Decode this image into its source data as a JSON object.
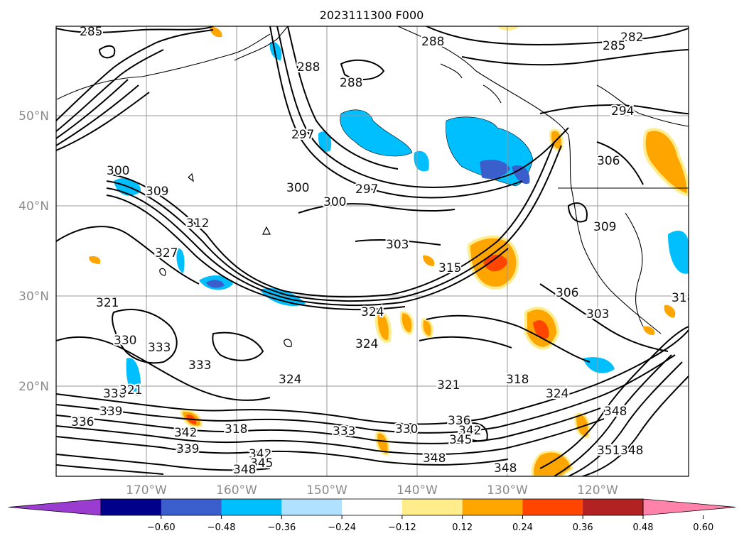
{
  "title": "2023111300 F000",
  "lat_labels": [
    "50°N",
    "40°N",
    "30°N",
    "20°N"
  ],
  "lon_labels": [
    "170°W",
    "160°W",
    "150°W",
    "140°W",
    "130°W",
    "120°W"
  ],
  "colorbar": {
    "colors": [
      "#9a3ccf",
      "#00008b",
      "#3a5fcd",
      "#00bfff",
      "#b0e2ff",
      "#ffffff",
      "#ffec8b",
      "#ffa500",
      "#ff4500",
      "#b22222",
      "#ff82ab"
    ],
    "tick_labels": [
      "−0.60",
      "−0.48",
      "−0.36",
      "−0.24",
      "−0.12",
      "0.12",
      "0.24",
      "0.36",
      "0.48",
      "0.60"
    ]
  },
  "contour_labels": [
    "285",
    "282",
    "285",
    "288",
    "288",
    "288",
    "294",
    "297",
    "300",
    "300",
    "297",
    "300",
    "303",
    "306",
    "309",
    "309",
    "312",
    "315",
    "318",
    "321",
    "324",
    "327",
    "321",
    "324",
    "330",
    "333",
    "333",
    "336",
    "339",
    "336",
    "339",
    "342",
    "342",
    "345",
    "348",
    "348",
    "351",
    "348",
    "348",
    "303",
    "306",
    "318",
    "324",
    "336",
    "342",
    "345",
    "348",
    "333",
    "330",
    "324",
    "318",
    "321"
  ],
  "shading_colors": {
    "neg_light": "#b0e2ff",
    "neg_mid": "#00bfff",
    "neg_dark": "#3a5fcd",
    "pos_light": "#ffec8b",
    "pos_mid": "#ffa500",
    "pos_dark": "#ff4500"
  }
}
